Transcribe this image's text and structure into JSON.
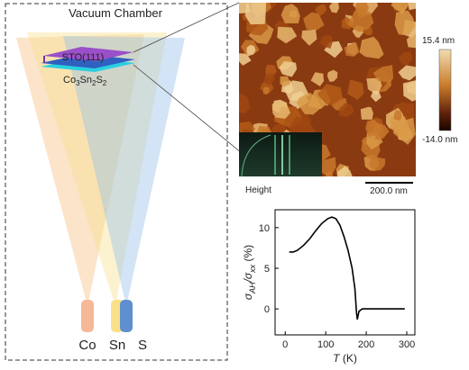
{
  "chamber": {
    "title": "Vacuum Chamber",
    "substrate": "STO(111)",
    "film_parts": [
      "Co",
      "3",
      "Sn",
      "2",
      "S",
      "2"
    ],
    "sources": [
      "Co",
      "Sn",
      "S"
    ]
  },
  "afm": {
    "colorbar_max": "15.4 nm",
    "colorbar_min": "-14.0 nm",
    "caption": "Height",
    "scalebar": "200.0 nm"
  },
  "chart_data": {
    "type": "line",
    "xlabel_parts": [
      "T",
      " (K)"
    ],
    "ylabel_parts": [
      "σ",
      "AH",
      "/σ",
      "xx",
      "  (%)"
    ],
    "x": [
      10,
      20,
      30,
      45,
      60,
      75,
      90,
      105,
      115,
      125,
      135,
      145,
      155,
      165,
      172,
      176,
      178,
      182,
      190,
      220,
      260,
      295
    ],
    "series": [
      {
        "color": "#000000",
        "values": [
          7.0,
          7.0,
          7.2,
          7.8,
          8.6,
          9.6,
          10.5,
          11.1,
          11.3,
          11.1,
          10.3,
          8.9,
          7.2,
          5.0,
          2.5,
          -0.5,
          -1.3,
          -0.3,
          0.0,
          0.0,
          0.0,
          0.0
        ]
      }
    ],
    "xlim": [
      -25,
      320
    ],
    "ylim": [
      -3.2,
      12.2
    ],
    "xticks": [
      0,
      100,
      200,
      300
    ],
    "yticks": [
      0,
      5,
      10
    ]
  }
}
